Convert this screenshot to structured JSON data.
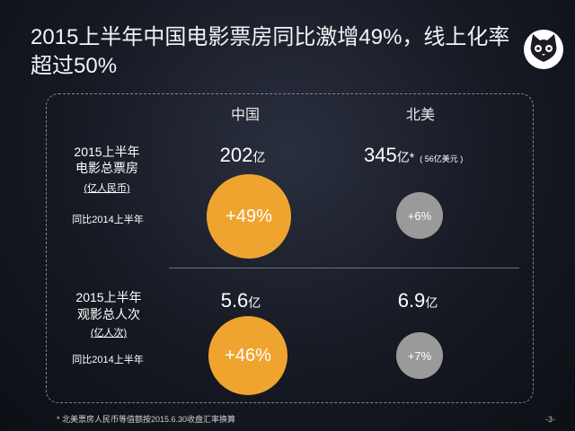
{
  "title": "2015上半年中国电影票房同比激增49%，线上化率超过50%",
  "columns": {
    "china": "中国",
    "na": "北美"
  },
  "section1": {
    "label_line1": "2015上半年",
    "label_line2": "电影总票房",
    "unit_note": "(亿人民币)",
    "compare_label": "同比2014上半年",
    "china_value": "202",
    "china_unit": "亿",
    "china_change": "+49%",
    "na_value": "345",
    "na_unit": "亿*",
    "na_note": "( 56亿美元 )",
    "na_change": "+6%"
  },
  "section2": {
    "label_line1": "2015上半年",
    "label_line2": "观影总人次",
    "unit_note": "(亿人次)",
    "compare_label": "同比2014上半年",
    "china_value": "5.6",
    "china_unit": "亿",
    "china_change": "+46%",
    "na_value": "6.9",
    "na_unit": "亿",
    "na_change": "+7%"
  },
  "footnote": "* 北美票房人民币等值额按2015.6.30收盘汇率换算",
  "page_number": "-3-",
  "colors": {
    "orange": "#f0a430",
    "gray": "#9a9a9a",
    "background": "#161922"
  },
  "logo_icon": "cat-face-icon"
}
